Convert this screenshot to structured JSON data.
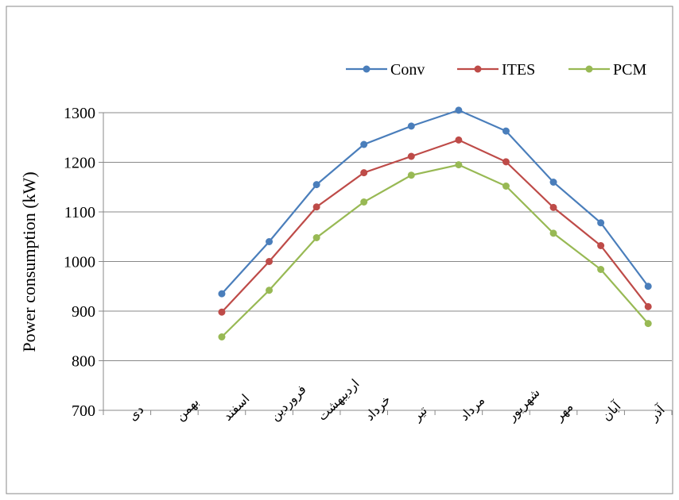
{
  "chart_data": {
    "type": "line",
    "y_label": "Power consumption (kW)",
    "categories": [
      "دی",
      "بهمن",
      "اسفند",
      "فروردین",
      "اردیبهشت",
      "خرداد",
      "تیر",
      "مرداد",
      "شهریور",
      "مهر",
      "آبان",
      "آذر"
    ],
    "series": [
      {
        "name": "Conv",
        "color": "#4a7ebb",
        "values": [
          null,
          null,
          935,
          1040,
          1155,
          1236,
          1273,
          1305,
          1263,
          1160,
          1078,
          950
        ]
      },
      {
        "name": "ITES",
        "color": "#be4b48",
        "values": [
          null,
          null,
          898,
          1000,
          1110,
          1179,
          1212,
          1245,
          1201,
          1109,
          1032,
          909
        ]
      },
      {
        "name": "PCM",
        "color": "#98b954",
        "values": [
          null,
          null,
          848,
          942,
          1048,
          1120,
          1174,
          1195,
          1152,
          1057,
          984,
          875
        ]
      }
    ],
    "ylim": [
      700,
      1300
    ],
    "yticks": [
      700,
      800,
      900,
      1000,
      1100,
      1200,
      1300
    ],
    "grid": true
  }
}
